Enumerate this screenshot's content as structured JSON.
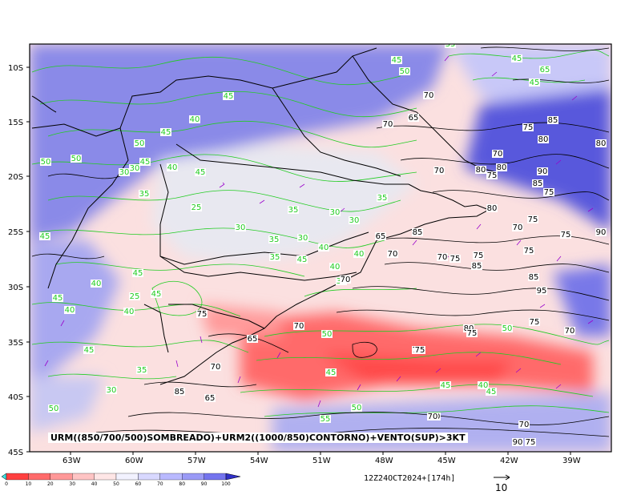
{
  "map": {
    "caption": "URM((850/700/500)SOMBREADO)+URM2((1000/850)CONTORNO)+VENTO(SUP)>3KT",
    "timestamp": "12Z24OCT2024+[174h]",
    "reference_vector_value": "10",
    "lat_labels": [
      "10S",
      "15S",
      "20S",
      "25S",
      "30S",
      "35S",
      "40S",
      "45S"
    ],
    "lon_labels": [
      "63W",
      "60W",
      "57W",
      "54W",
      "51W",
      "48W",
      "45W",
      "42W",
      "39W"
    ],
    "colorbar_ticks": [
      "0",
      "10",
      "20",
      "30",
      "40",
      "50",
      "60",
      "70",
      "80",
      "90",
      "100"
    ],
    "colorbar_colors": [
      "#ff4040",
      "#ff6b6b",
      "#ff9898",
      "#ffc4c4",
      "#ffe6e6",
      "#f2f2ff",
      "#d8d8ff",
      "#b9b9ff",
      "#9a9af6",
      "#7474ee"
    ],
    "contour_colors": {
      "shaded_humidity_contours_green": "#22cc22",
      "low_level_humidity_contours_black": "#000000",
      "wind_vectors": "#9900cc"
    },
    "green_contour_labels": [
      "45",
      "50",
      "35",
      "45",
      "45",
      "65",
      "45",
      "40",
      "45",
      "50",
      "45",
      "30",
      "40",
      "45",
      "35",
      "30",
      "25",
      "35",
      "30",
      "30",
      "35",
      "40",
      "35",
      "40",
      "35",
      "45",
      "40",
      "30",
      "35",
      "30",
      "25",
      "40",
      "50",
      "40",
      "45",
      "40",
      "50",
      "45",
      "45",
      "45",
      "35",
      "30",
      "50",
      "45",
      "50",
      "45",
      "55",
      "50",
      "45",
      "40",
      "45",
      "50"
    ],
    "black_contour_labels": [
      "70",
      "70",
      "65",
      "75",
      "85",
      "80",
      "80",
      "70",
      "70",
      "80",
      "80",
      "75",
      "90",
      "85",
      "75",
      "80",
      "75",
      "70",
      "75",
      "90",
      "85",
      "70",
      "70",
      "75",
      "85",
      "75",
      "75",
      "85",
      "70",
      "95",
      "75",
      "75",
      "65",
      "70",
      "70",
      "80",
      "75",
      "70",
      "75",
      "65",
      "70",
      "85",
      "80",
      "70",
      "75",
      "90",
      "70",
      "65"
    ]
  }
}
